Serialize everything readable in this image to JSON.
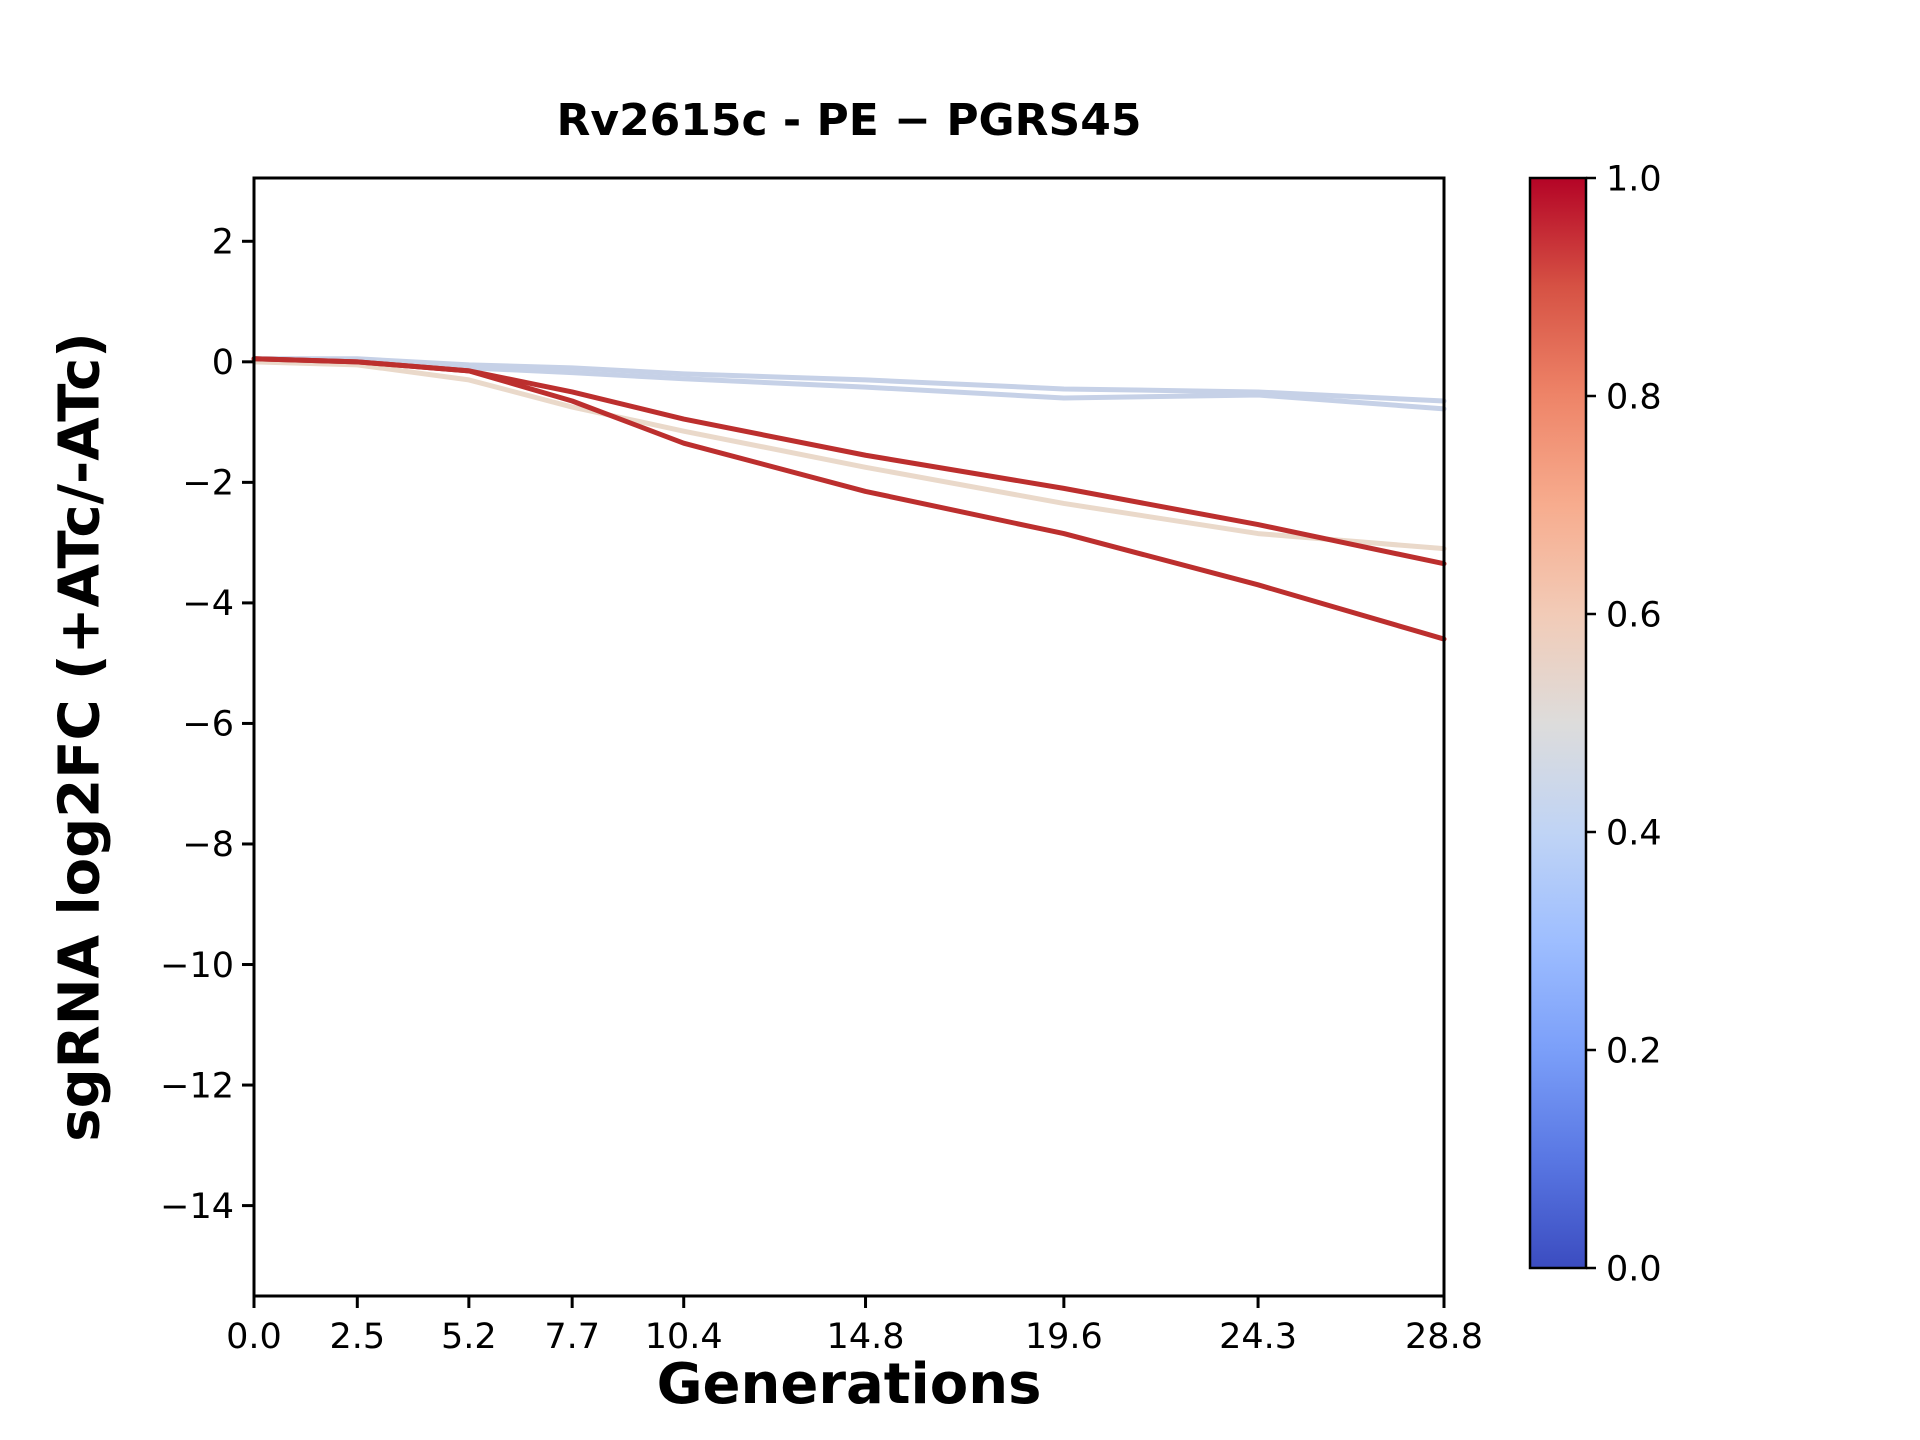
{
  "chart_data": {
    "type": "line",
    "title": "Rv2615c - PE − PGRS45",
    "xlabel": "Generations",
    "ylabel": "sgRNA log2FC (+ATc/-ATc)",
    "xlim": [
      0,
      28.8
    ],
    "ylim": [
      -15.5,
      3.05
    ],
    "xticks": [
      0.0,
      2.5,
      5.2,
      7.7,
      10.4,
      14.8,
      19.6,
      24.3,
      28.8
    ],
    "yticks": [
      2,
      0,
      -2,
      -4,
      -6,
      -8,
      -10,
      -12,
      -14
    ],
    "grid": false,
    "legend": "none",
    "x": [
      0.0,
      2.5,
      5.2,
      7.7,
      10.4,
      14.8,
      19.6,
      24.3,
      28.8
    ],
    "series": [
      {
        "color_value": 0.42,
        "color": "#c6d1e7",
        "values": [
          0.05,
          0.05,
          -0.05,
          -0.1,
          -0.2,
          -0.3,
          -0.45,
          -0.5,
          -0.65
        ]
      },
      {
        "color_value": 0.42,
        "color": "#c6d1e7",
        "values": [
          0.05,
          0.0,
          -0.1,
          -0.18,
          -0.28,
          -0.42,
          -0.6,
          -0.55,
          -0.78
        ]
      },
      {
        "color_value": 0.56,
        "color": "#ead9ca",
        "values": [
          0.0,
          -0.05,
          -0.3,
          -0.75,
          -1.15,
          -1.75,
          -2.35,
          -2.85,
          -3.1
        ]
      },
      {
        "color_value": 0.93,
        "color": "#bc2f2e",
        "values": [
          0.05,
          0.0,
          -0.15,
          -0.5,
          -0.95,
          -1.55,
          -2.1,
          -2.7,
          -3.35
        ]
      },
      {
        "color_value": 0.93,
        "color": "#bc2f2e",
        "values": [
          0.05,
          0.0,
          -0.15,
          -0.65,
          -1.35,
          -2.15,
          -2.85,
          -3.7,
          -4.6
        ]
      }
    ],
    "colorbar": {
      "ticks": [
        0.0,
        0.2,
        0.4,
        0.6,
        0.8,
        1.0
      ],
      "colormap": "coolwarm",
      "range": [
        0.0,
        1.0
      ],
      "stops": [
        {
          "value": 0.0,
          "color": "#3b4cc0"
        },
        {
          "value": 0.1,
          "color": "#5977e3"
        },
        {
          "value": 0.2,
          "color": "#7b9ff9"
        },
        {
          "value": 0.3,
          "color": "#9ebeff"
        },
        {
          "value": 0.4,
          "color": "#c0d4f5"
        },
        {
          "value": 0.5,
          "color": "#dddcdb"
        },
        {
          "value": 0.6,
          "color": "#f2cbb7"
        },
        {
          "value": 0.7,
          "color": "#f7ac8e"
        },
        {
          "value": 0.8,
          "color": "#ee8468"
        },
        {
          "value": 0.9,
          "color": "#d65244"
        },
        {
          "value": 1.0,
          "color": "#b40426"
        }
      ]
    }
  }
}
